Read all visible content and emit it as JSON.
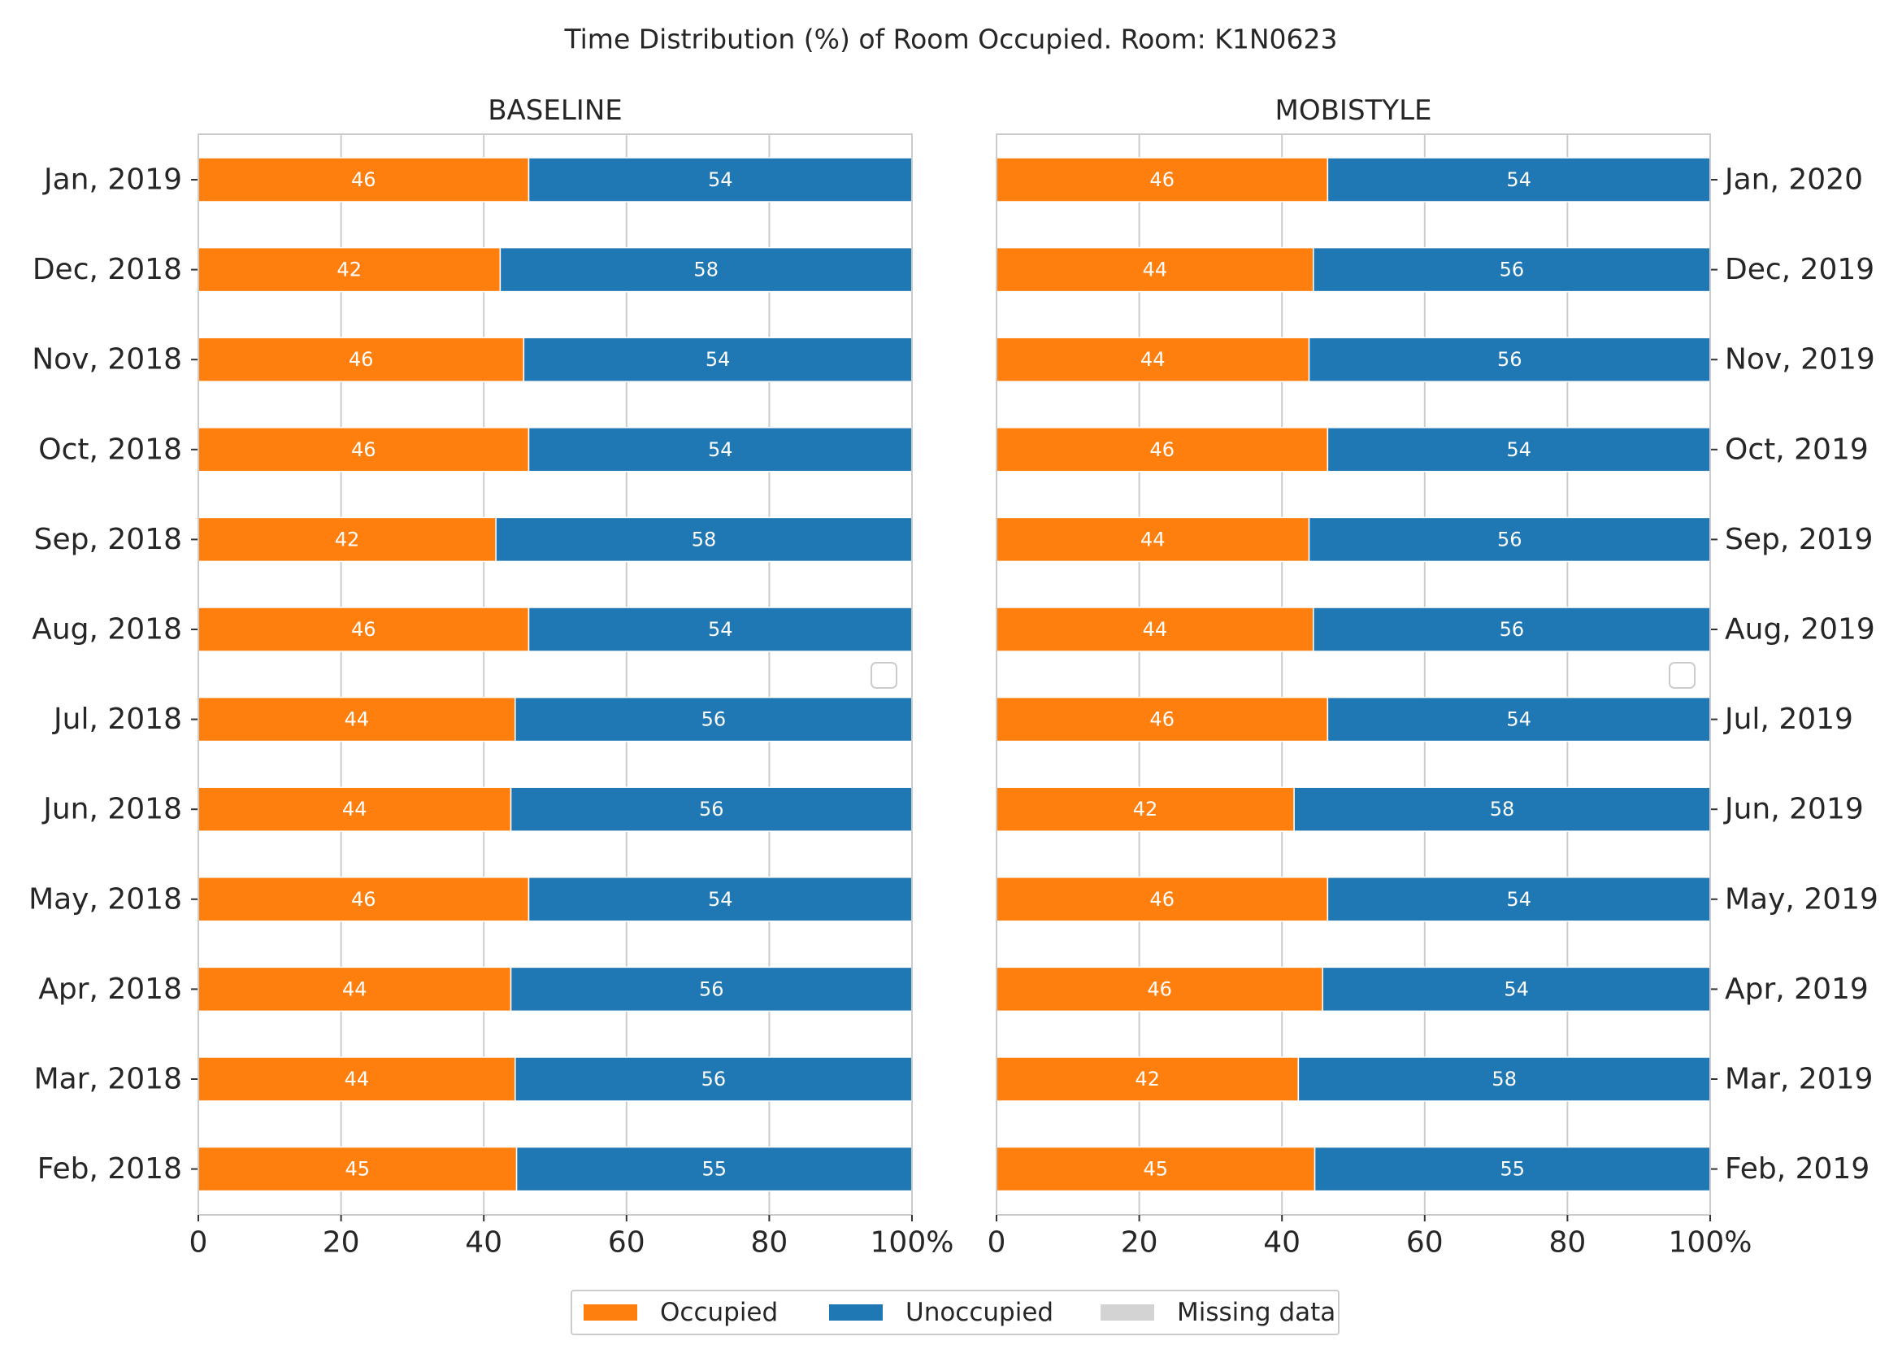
{
  "chart_data": {
    "type": "bar",
    "orientation": "horizontal",
    "stacked": true,
    "title": "Time Distribution (%) of Room Occupied. Room: K1N0623",
    "xlim": [
      0,
      100
    ],
    "x_ticks": [
      "0",
      "20",
      "40",
      "60",
      "80",
      "100%"
    ],
    "grid": true,
    "legend_position": "bottom-center",
    "legend": [
      {
        "name": "Occupied",
        "color": "#ff7f0e"
      },
      {
        "name": "Unoccupied",
        "color": "#1f77b4"
      },
      {
        "name": "Missing data",
        "color": "#d3d3d3"
      }
    ],
    "panels": [
      {
        "title": "BASELINE",
        "label_side": "left",
        "categories": [
          "Jan, 2019",
          "Dec, 2018",
          "Nov, 2018",
          "Oct, 2018",
          "Sep, 2018",
          "Aug, 2018",
          "Jul, 2018",
          "Jun, 2018",
          "May, 2018",
          "Apr, 2018",
          "Mar, 2018",
          "Feb, 2018"
        ],
        "series": [
          {
            "name": "Occupied",
            "values": [
              46.3,
              42.3,
              45.6,
              46.3,
              41.7,
              46.3,
              44.4,
              43.8,
              46.3,
              43.8,
              44.4,
              44.6
            ],
            "labels": [
              "46",
              "42",
              "46",
              "46",
              "42",
              "46",
              "44",
              "44",
              "46",
              "44",
              "44",
              "45"
            ]
          },
          {
            "name": "Unoccupied",
            "values": [
              53.7,
              57.7,
              54.4,
              53.7,
              58.3,
              53.7,
              55.6,
              56.2,
              53.7,
              56.2,
              55.6,
              55.4
            ],
            "labels": [
              "54",
              "58",
              "54",
              "54",
              "58",
              "54",
              "56",
              "56",
              "54",
              "56",
              "56",
              "55"
            ]
          }
        ]
      },
      {
        "title": "MOBISTYLE",
        "label_side": "right",
        "categories": [
          "Jan, 2020",
          "Dec, 2019",
          "Nov, 2019",
          "Oct, 2019",
          "Sep, 2019",
          "Aug, 2019",
          "Jul, 2019",
          "Jun, 2019",
          "May, 2019",
          "Apr, 2019",
          "Mar, 2019",
          "Feb, 2019"
        ],
        "series": [
          {
            "name": "Occupied",
            "values": [
              46.4,
              44.4,
              43.8,
              46.4,
              43.8,
              44.4,
              46.4,
              41.7,
              46.4,
              45.7,
              42.3,
              44.6
            ],
            "labels": [
              "46",
              "44",
              "44",
              "46",
              "44",
              "44",
              "46",
              "42",
              "46",
              "46",
              "42",
              "45"
            ]
          },
          {
            "name": "Unoccupied",
            "values": [
              53.6,
              55.6,
              56.2,
              53.6,
              56.2,
              55.6,
              53.6,
              58.3,
              53.6,
              54.3,
              57.7,
              55.4
            ],
            "labels": [
              "54",
              "56",
              "56",
              "54",
              "56",
              "56",
              "54",
              "58",
              "54",
              "54",
              "58",
              "55"
            ]
          }
        ]
      }
    ]
  },
  "colors": {
    "occupied": "#ff7f0e",
    "unoccupied": "#1f77b4",
    "missing": "#d3d3d3",
    "grid": "#cccccc"
  }
}
